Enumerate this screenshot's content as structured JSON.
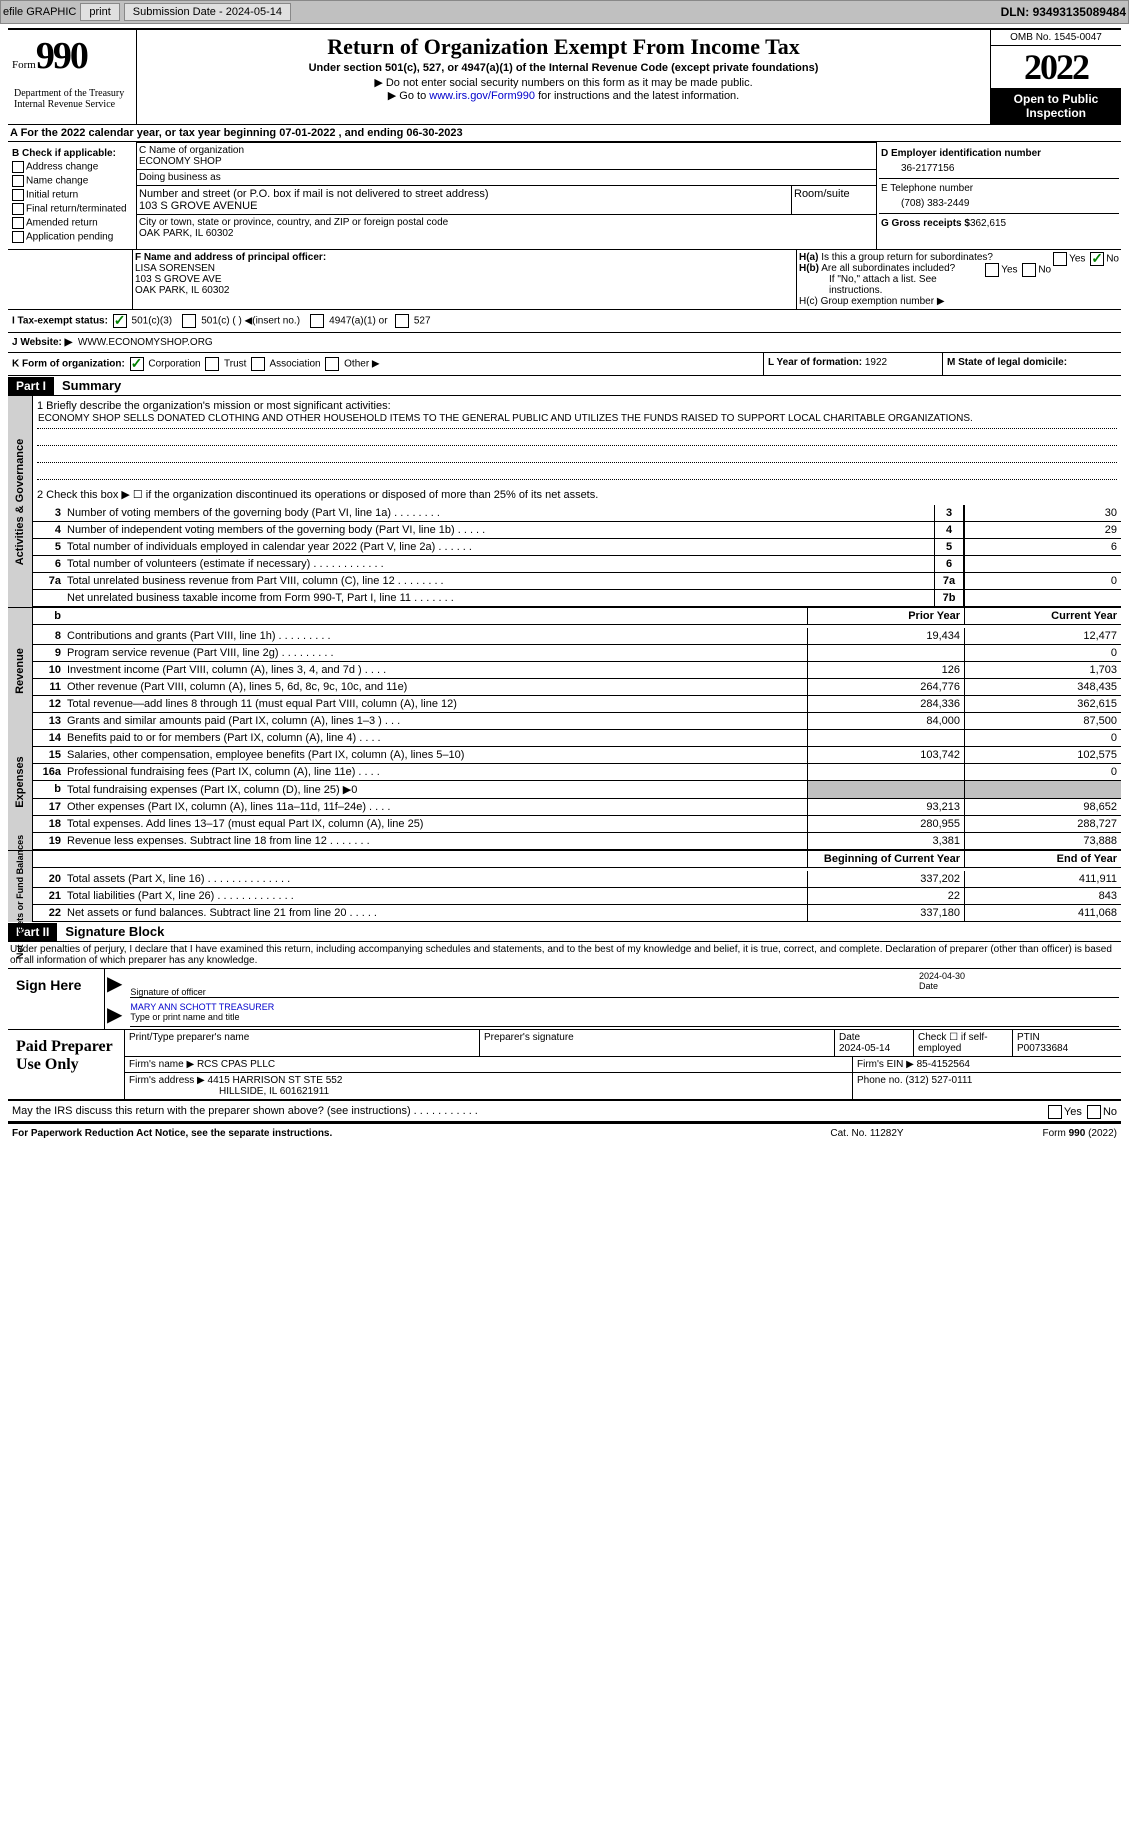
{
  "toolbar": {
    "efile": "efile GRAPHIC",
    "print": "print",
    "sub_label": "Submission Date - ",
    "sub_date": "2024-05-14",
    "dln_label": "DLN: ",
    "dln": "93493135089484"
  },
  "header": {
    "form_small": "Form",
    "form_big": "990",
    "title": "Return of Organization Exempt From Income Tax",
    "subtitle": "Under section 501(c), 527, or 4947(a)(1) of the Internal Revenue Code (except private foundations)",
    "note1": "▶ Do not enter social security numbers on this form as it may be made public.",
    "note2_pre": "▶ Go to ",
    "note2_link": "www.irs.gov/Form990",
    "note2_post": " for instructions and the latest information.",
    "omb": "OMB No. 1545-0047",
    "year": "2022",
    "open": "Open to Public Inspection",
    "dept": "Department of the Treasury\nInternal Revenue Service"
  },
  "rowA": {
    "pre": "A For the 2022 calendar year, or tax year beginning ",
    "begin": "07-01-2022",
    "mid": " , and ending ",
    "end": "06-30-2023"
  },
  "colB": {
    "hdr": "B Check if applicable:",
    "items": [
      "Address change",
      "Name change",
      "Initial return",
      "Final return/terminated",
      "Amended return",
      "Application pending"
    ]
  },
  "colC": {
    "name_lbl": "C Name of organization",
    "name": "ECONOMY SHOP",
    "dba_lbl": "Doing business as",
    "dba": "",
    "addr_lbl": "Number and street (or P.O. box if mail is not delivered to street address)",
    "room_lbl": "Room/suite",
    "addr": "103 S GROVE AVENUE",
    "city_lbl": "City or town, state or province, country, and ZIP or foreign postal code",
    "city": "OAK PARK, IL  60302"
  },
  "colD": {
    "ein_lbl": "D Employer identification number",
    "ein": "36-2177156",
    "tel_lbl": "E Telephone number",
    "tel": "(708) 383-2449",
    "gross_lbl": "G Gross receipts $",
    "gross": "362,615"
  },
  "rowF": {
    "lbl": "F Name and address of principal officer:",
    "name": "LISA SORENSEN",
    "addr1": "103 S GROVE AVE",
    "addr2": "OAK PARK, IL  60302"
  },
  "rowH": {
    "ha": "H(a)  Is this a group return for subordinates?",
    "ha_no": true,
    "hb": "H(b)  Are all subordinates included?",
    "hb_note": "If \"No,\" attach a list. See instructions.",
    "hc": "H(c)  Group exemption number ▶"
  },
  "rowI": {
    "lbl": "I   Tax-exempt status:",
    "c3": "501(c)(3)",
    "c": "501(c) (  ) ◀(insert no.)",
    "a1": "4947(a)(1) or",
    "s527": "527"
  },
  "rowJ": {
    "lbl": "J  Website: ▶",
    "val": "WWW.ECONOMYSHOP.ORG"
  },
  "rowK": {
    "lbl": "K Form of organization:",
    "corp": "Corporation",
    "trust": "Trust",
    "assoc": "Association",
    "other": "Other ▶"
  },
  "rowL": {
    "lbl": "L Year of formation:",
    "val": "1922"
  },
  "rowM": {
    "lbl": "M State of legal domicile:",
    "val": ""
  },
  "part1": {
    "hdr": "Part I",
    "title": "Summary"
  },
  "mission": {
    "lbl": "1   Briefly describe the organization's mission or most significant activities:",
    "text": "ECONOMY SHOP SELLS DONATED CLOTHING AND OTHER HOUSEHOLD ITEMS TO THE GENERAL PUBLIC AND UTILIZES THE FUNDS RAISED TO SUPPORT LOCAL CHARITABLE ORGANIZATIONS."
  },
  "line2": "2   Check this box ▶ ☐ if the organization discontinued its operations or disposed of more than 25% of its net assets.",
  "side_labels": {
    "gov": "Activities & Governance",
    "rev": "Revenue",
    "exp": "Expenses",
    "net": "Net Assets or Fund Balances"
  },
  "gov_rows": [
    {
      "n": "3",
      "d": "Number of voting members of the governing body (Part VI, line 1a)   .    .    .    .    .    .    .    .",
      "b": "3",
      "v": "30"
    },
    {
      "n": "4",
      "d": "Number of independent voting members of the governing body (Part VI, line 1b)   .    .    .    .    .",
      "b": "4",
      "v": "29"
    },
    {
      "n": "5",
      "d": "Total number of individuals employed in calendar year 2022 (Part V, line 2a)   .    .    .    .    .    .",
      "b": "5",
      "v": "6"
    },
    {
      "n": "6",
      "d": "Total number of volunteers (estimate if necessary)    .    .    .    .    .    .    .    .    .    .    .    .",
      "b": "6",
      "v": ""
    },
    {
      "n": "7a",
      "d": "Total unrelated business revenue from Part VIII, column (C), line 12   .    .    .    .    .    .    .    .",
      "b": "7a",
      "v": "0"
    },
    {
      "n": "",
      "d": "Net unrelated business taxable income from Form 990-T, Part I, line 11   .    .    .    .    .    .    .",
      "b": "7b",
      "v": ""
    }
  ],
  "col_hdrs": {
    "b": "b",
    "prior": "Prior Year",
    "current": "Current Year"
  },
  "rev_rows": [
    {
      "n": "8",
      "d": "Contributions and grants (Part VIII, line 1h)   .    .    .    .    .    .    .    .    .",
      "p": "19,434",
      "c": "12,477"
    },
    {
      "n": "9",
      "d": "Program service revenue (Part VIII, line 2g)   .    .    .    .    .    .    .    .    .",
      "p": "",
      "c": "0"
    },
    {
      "n": "10",
      "d": "Investment income (Part VIII, column (A), lines 3, 4, and 7d )   .    .    .    .",
      "p": "126",
      "c": "1,703"
    },
    {
      "n": "11",
      "d": "Other revenue (Part VIII, column (A), lines 5, 6d, 8c, 9c, 10c, and 11e)",
      "p": "264,776",
      "c": "348,435"
    },
    {
      "n": "12",
      "d": "Total revenue—add lines 8 through 11 (must equal Part VIII, column (A), line 12)",
      "p": "284,336",
      "c": "362,615"
    }
  ],
  "exp_rows": [
    {
      "n": "13",
      "d": "Grants and similar amounts paid (Part IX, column (A), lines 1–3 )   .    .    .",
      "p": "84,000",
      "c": "87,500"
    },
    {
      "n": "14",
      "d": "Benefits paid to or for members (Part IX, column (A), line 4)   .    .    .    .",
      "p": "",
      "c": "0"
    },
    {
      "n": "15",
      "d": "Salaries, other compensation, employee benefits (Part IX, column (A), lines 5–10)",
      "p": "103,742",
      "c": "102,575"
    },
    {
      "n": "16a",
      "d": "Professional fundraising fees (Part IX, column (A), line 11e)   .    .    .    .",
      "p": "",
      "c": "0"
    },
    {
      "n": "b",
      "d": "Total fundraising expenses (Part IX, column (D), line 25) ▶0",
      "p": "",
      "c": "",
      "shaded": true
    },
    {
      "n": "17",
      "d": "Other expenses (Part IX, column (A), lines 11a–11d, 11f–24e)   .    .    .    .",
      "p": "93,213",
      "c": "98,652"
    },
    {
      "n": "18",
      "d": "Total expenses. Add lines 13–17 (must equal Part IX, column (A), line 25)",
      "p": "280,955",
      "c": "288,727"
    },
    {
      "n": "19",
      "d": "Revenue less expenses. Subtract line 18 from line 12   .    .    .    .    .    .    .",
      "p": "3,381",
      "c": "73,888"
    }
  ],
  "net_hdrs": {
    "begin": "Beginning of Current Year",
    "end": "End of Year"
  },
  "net_rows": [
    {
      "n": "20",
      "d": "Total assets (Part X, line 16)  .    .    .    .    .    .    .    .    .    .    .    .    .    .",
      "p": "337,202",
      "c": "411,911"
    },
    {
      "n": "21",
      "d": "Total liabilities (Part X, line 26)  .    .    .    .    .    .    .    .    .    .    .    .    .",
      "p": "22",
      "c": "843"
    },
    {
      "n": "22",
      "d": "Net assets or fund balances. Subtract line 21 from line 20   .    .    .    .    .",
      "p": "337,180",
      "c": "411,068"
    }
  ],
  "part2": {
    "hdr": "Part II",
    "title": "Signature Block"
  },
  "perjury": "Under penalties of perjury, I declare that I have examined this return, including accompanying schedules and statements, and to the best of my knowledge and belief, it is true, correct, and complete. Declaration of preparer (other than officer) is based on all information of which preparer has any knowledge.",
  "sign": {
    "here": "Sign Here",
    "sig_lbl": "Signature of officer",
    "date": "2024-04-30",
    "date_lbl": "Date",
    "name": "MARY ANN SCHOTT TREASURER",
    "name_lbl": "Type or print name and title"
  },
  "prep": {
    "hdr": "Paid Preparer Use Only",
    "row1": {
      "name_lbl": "Print/Type preparer's name",
      "sig_lbl": "Preparer's signature",
      "date_lbl": "Date",
      "date": "2024-05-14",
      "self_lbl": "Check ☐ if self-employed",
      "ptin_lbl": "PTIN",
      "ptin": "P00733684"
    },
    "row2": {
      "firm_lbl": "Firm's name    ▶",
      "firm": "RCS CPAS PLLC",
      "ein_lbl": "Firm's EIN ▶",
      "ein": "85-4152564"
    },
    "row3": {
      "addr_lbl": "Firm's address ▶",
      "addr1": "4415 HARRISON ST STE 552",
      "addr2": "HILLSIDE, IL  601621911",
      "phone_lbl": "Phone no.",
      "phone": "(312) 527-0111"
    }
  },
  "discuss": "May the IRS discuss this return with the preparer shown above? (see instructions)   .    .    .    .    .    .    .    .    .    .    .",
  "footer": {
    "pra": "For Paperwork Reduction Act Notice, see the separate instructions.",
    "cat": "Cat. No. 11282Y",
    "form": "Form 990 (2022)"
  }
}
